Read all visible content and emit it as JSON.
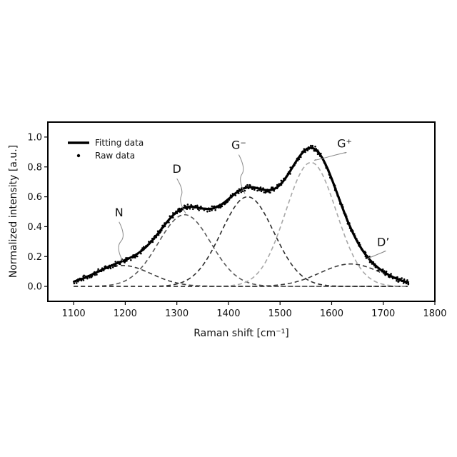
{
  "chart_data": {
    "type": "line",
    "xlabel": "Raman shift [cm⁻¹]",
    "ylabel": "Normalized intensity [a.u.]",
    "xlim": [
      1050,
      1800
    ],
    "ylim": [
      -0.1,
      1.1
    ],
    "xticks": [
      1100,
      1200,
      1300,
      1400,
      1500,
      1600,
      1700,
      1800
    ],
    "yticks": [
      0.0,
      0.2,
      0.4,
      0.6,
      0.8,
      1.0
    ],
    "x_tick_labels": [
      "1100",
      "1200",
      "1300",
      "1400",
      "1500",
      "1600",
      "1700",
      "1800"
    ],
    "y_tick_labels": [
      "0.0",
      "0.2",
      "0.4",
      "0.6",
      "0.8",
      "1.0"
    ],
    "x_range": [
      1100,
      1750
    ],
    "grid": false,
    "legend_position": "top-left",
    "legend": [
      {
        "label": "Fitting data",
        "style": "thick-line",
        "color": "#000000"
      },
      {
        "label": "Raw data",
        "style": "dots",
        "color": "#000000"
      }
    ],
    "components": [
      {
        "label": "N",
        "center": 1195,
        "fwhm": 130,
        "amplitude": 0.14,
        "color": "#3a3a3a",
        "label_x": 1188,
        "label_y": 0.47,
        "leader_to": [
          1195,
          0.17
        ]
      },
      {
        "label": "D",
        "center": 1315,
        "fwhm": 120,
        "amplitude": 0.48,
        "color": "#5a5a5a",
        "label_x": 1300,
        "label_y": 0.76,
        "leader_to": [
          1317,
          0.49
        ]
      },
      {
        "label": "G⁻",
        "center": 1437,
        "fwhm": 120,
        "amplitude": 0.6,
        "color": "#2e2e2e",
        "label_x": 1420,
        "label_y": 0.92,
        "leader_to": [
          1432,
          0.62
        ]
      },
      {
        "label": "G⁺",
        "center": 1560,
        "fwhm": 115,
        "amplitude": 0.83,
        "color": "#a8a8a8",
        "label_x": 1625,
        "label_y": 0.93,
        "leader_to": [
          1570,
          0.85
        ]
      },
      {
        "label": "D’",
        "center": 1637,
        "fwhm": 140,
        "amplitude": 0.15,
        "color": "#3a3a3a",
        "label_x": 1700,
        "label_y": 0.27,
        "leader_to": [
          1673,
          0.19
        ]
      }
    ]
  }
}
